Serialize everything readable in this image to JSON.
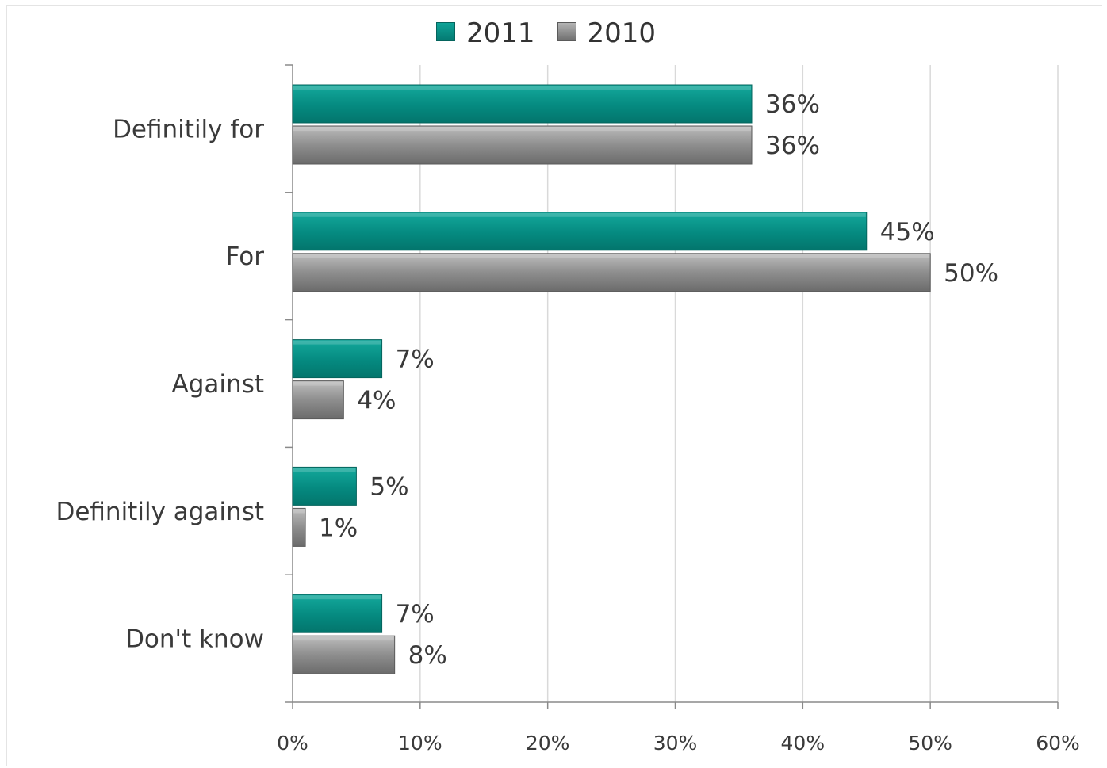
{
  "chart_data": {
    "type": "bar",
    "orientation": "horizontal",
    "categories": [
      "Definitily for",
      "For",
      "Against",
      "Definitily against",
      "Don't know"
    ],
    "series": [
      {
        "name": "2011",
        "color": "#058a80",
        "values": [
          36,
          45,
          7,
          5,
          7
        ],
        "labels": [
          "36%",
          "45%",
          "7%",
          "5%",
          "7%"
        ]
      },
      {
        "name": "2010",
        "color": "#8c8c8c",
        "values": [
          36,
          50,
          4,
          1,
          8
        ],
        "labels": [
          "36%",
          "50%",
          "4%",
          "1%",
          "8%"
        ]
      }
    ],
    "xlim": [
      0,
      60
    ],
    "xticks": [
      0,
      10,
      20,
      30,
      40,
      50,
      60
    ],
    "xtick_labels": [
      "0%",
      "10%",
      "20%",
      "30%",
      "40%",
      "50%",
      "60%"
    ],
    "grid": "vertical",
    "legend": "top-center",
    "title": "",
    "xlabel": "",
    "ylabel": ""
  }
}
